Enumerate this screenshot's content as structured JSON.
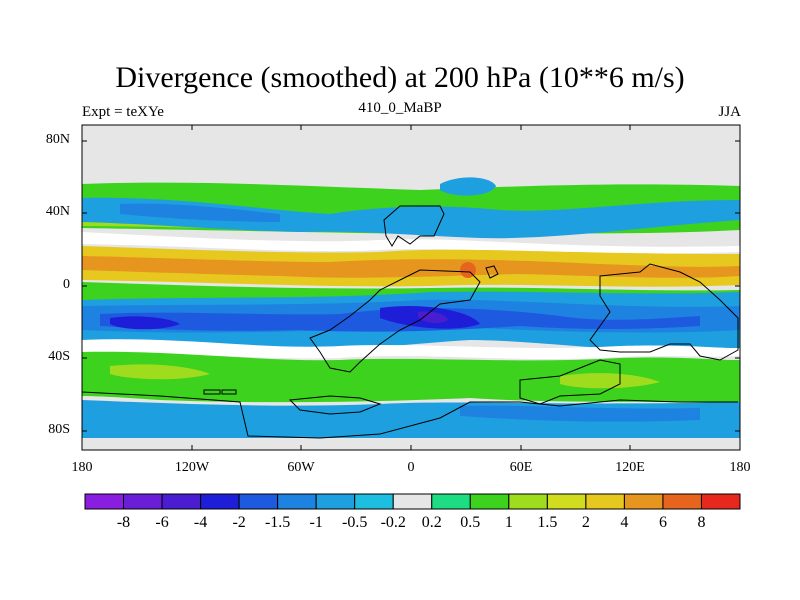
{
  "title": "Divergence (smoothed) at 200 hPa (10**6 m/s)",
  "subtitle_left": "Expt = teXYe",
  "subtitle_center": "410_0_MaBP",
  "subtitle_right": "JJA",
  "lat_ticks": [
    "80N",
    "40N",
    "0",
    "40S",
    "80S"
  ],
  "lon_ticks": [
    "180",
    "120W",
    "60W",
    "0",
    "60E",
    "120E",
    "180"
  ],
  "colorbar": {
    "labels": [
      "-8",
      "-6",
      "-4",
      "-2",
      "-1.5",
      "-1",
      "-0.5",
      "-0.2",
      "0.2",
      "0.5",
      "1",
      "1.5",
      "2",
      "4",
      "6",
      "8"
    ],
    "colors": [
      "#8a1ee0",
      "#6a1ed8",
      "#4a1ed0",
      "#1e1ed8",
      "#1e5ae0",
      "#1e82e0",
      "#1ea0e0",
      "#1ebee0",
      "#e6e6e6",
      "#1edc82",
      "#3cd21e",
      "#a0dc1e",
      "#d2dc1e",
      "#e6c81e",
      "#e6961e",
      "#e6641e",
      "#e6281e"
    ]
  },
  "chart_data": {
    "type": "heatmap",
    "title": "Divergence (smoothed) at 200 hPa (10**6 m/s)",
    "xlim": [
      -180,
      180
    ],
    "ylim": [
      -90,
      90
    ],
    "contour_levels": [
      -8,
      -6,
      -4,
      -2,
      -1.5,
      -1,
      -0.5,
      -0.2,
      0.2,
      0.5,
      1,
      1.5,
      2,
      4,
      6,
      8
    ],
    "bands": [
      {
        "lat_range": [
          50,
          60
        ],
        "level": 0.5
      },
      {
        "lat_range": [
          30,
          50
        ],
        "level": -1
      },
      {
        "lat_range": [
          10,
          20
        ],
        "level": 2
      },
      {
        "lat_range": [
          -5,
          5
        ],
        "level": 0.5
      },
      {
        "lat_range": [
          -25,
          -10
        ],
        "level": -2
      },
      {
        "lat_range": [
          -50,
          -30
        ],
        "level": 1
      },
      {
        "lat_range": [
          -80,
          -60
        ],
        "level": -0.5
      }
    ],
    "extremes": [
      {
        "lon": 30,
        "lat": 10,
        "level": 4
      },
      {
        "lon": 10,
        "lat": -15,
        "level": -4
      }
    ]
  }
}
